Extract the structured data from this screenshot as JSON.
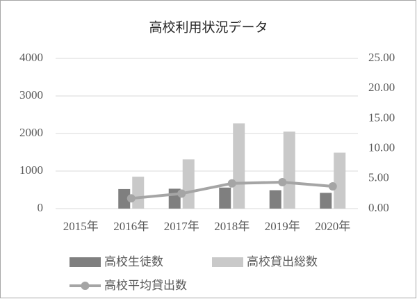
{
  "chart_data": {
    "type": "bar",
    "title": "高校利用状況データ",
    "categories": [
      "2015年",
      "2016年",
      "2017年",
      "2018年",
      "2019年",
      "2020年"
    ],
    "series": [
      {
        "name": "高校生徒数",
        "type": "bar",
        "color": "#7f7f7f",
        "values": [
          null,
          520,
          530,
          560,
          490,
          420
        ]
      },
      {
        "name": "高校貸出総数",
        "type": "bar",
        "color": "#c9c9c9",
        "values": [
          null,
          850,
          1310,
          2270,
          2050,
          1490
        ]
      },
      {
        "name": "高校平均貸出数",
        "type": "line",
        "axis": "y2",
        "color": "#a5a5a5",
        "values": [
          null,
          1.7,
          2.5,
          4.2,
          4.4,
          3.7
        ]
      }
    ],
    "ylim": [
      0,
      4000
    ],
    "yticks": [
      0,
      1000,
      2000,
      3000,
      4000
    ],
    "y2lim": [
      0,
      25
    ],
    "y2ticks": [
      {
        "value": 0,
        "label": "0.00"
      },
      {
        "value": 5,
        "label": "5.00"
      },
      {
        "value": 10,
        "label": "10.00"
      },
      {
        "value": 15,
        "label": "15.00"
      },
      {
        "value": 20,
        "label": "20.00"
      },
      {
        "value": 25,
        "label": "25.00"
      }
    ],
    "grid": true,
    "legend": "bottom"
  }
}
